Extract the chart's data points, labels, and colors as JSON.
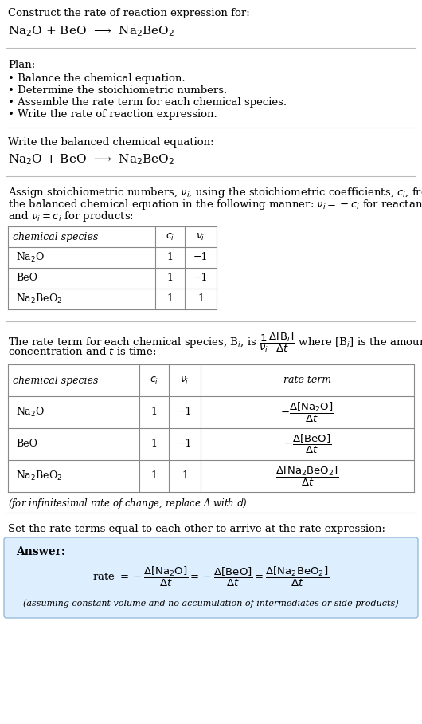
{
  "bg_color": "#ffffff",
  "text_color": "#000000",
  "answer_bg": "#ddeeff",
  "title_text": "Construct the rate of reaction expression for:",
  "reaction_equation": "Na$_2$O + BeO  ⟶  Na$_2$BeO$_2$",
  "plan_title": "Plan:",
  "plan_items": [
    "• Balance the chemical equation.",
    "• Determine the stoichiometric numbers.",
    "• Assemble the rate term for each chemical species.",
    "• Write the rate of reaction expression."
  ],
  "balanced_label": "Write the balanced chemical equation:",
  "balanced_eq": "Na$_2$O + BeO  ⟶  Na$_2$BeO$_2$",
  "stoich_intro_lines": [
    "Assign stoichiometric numbers, $\\nu_i$, using the stoichiometric coefficients, $c_i$, from",
    "the balanced chemical equation in the following manner: $\\nu_i = -c_i$ for reactants",
    "and $\\nu_i = c_i$ for products:"
  ],
  "table1_headers": [
    "chemical species",
    "$c_i$",
    "$\\nu_i$"
  ],
  "table1_rows": [
    [
      "Na$_2$O",
      "1",
      "−1"
    ],
    [
      "BeO",
      "1",
      "−1"
    ],
    [
      "Na$_2$BeO$_2$",
      "1",
      "1"
    ]
  ],
  "rate_term_intro_lines": [
    "The rate term for each chemical species, B$_i$, is $\\dfrac{1}{\\nu_i}\\dfrac{\\Delta[\\mathrm{B}_i]}{\\Delta t}$ where [B$_i$] is the amount",
    "concentration and $t$ is time:"
  ],
  "table2_headers": [
    "chemical species",
    "$c_i$",
    "$\\nu_i$",
    "rate term"
  ],
  "table2_rows": [
    [
      "Na$_2$O",
      "1",
      "−1",
      "$-\\dfrac{\\Delta[\\mathrm{Na_2O}]}{\\Delta t}$"
    ],
    [
      "BeO",
      "1",
      "−1",
      "$-\\dfrac{\\Delta[\\mathrm{BeO}]}{\\Delta t}$"
    ],
    [
      "Na$_2$BeO$_2$",
      "1",
      "1",
      "$\\dfrac{\\Delta[\\mathrm{Na_2BeO_2}]}{\\Delta t}$"
    ]
  ],
  "infinitesimal_note": "(for infinitesimal rate of change, replace Δ with $d$)",
  "rate_eq_label": "Set the rate terms equal to each other to arrive at the rate expression:",
  "answer_label": "Answer:",
  "rate_expression": "rate $= -\\dfrac{\\Delta[\\mathrm{Na_2O}]}{\\Delta t} = -\\dfrac{\\Delta[\\mathrm{BeO}]}{\\Delta t} = \\dfrac{\\Delta[\\mathrm{Na_2BeO_2}]}{\\Delta t}$",
  "assumption_note": "(assuming constant volume and no accumulation of intermediates or side products)"
}
